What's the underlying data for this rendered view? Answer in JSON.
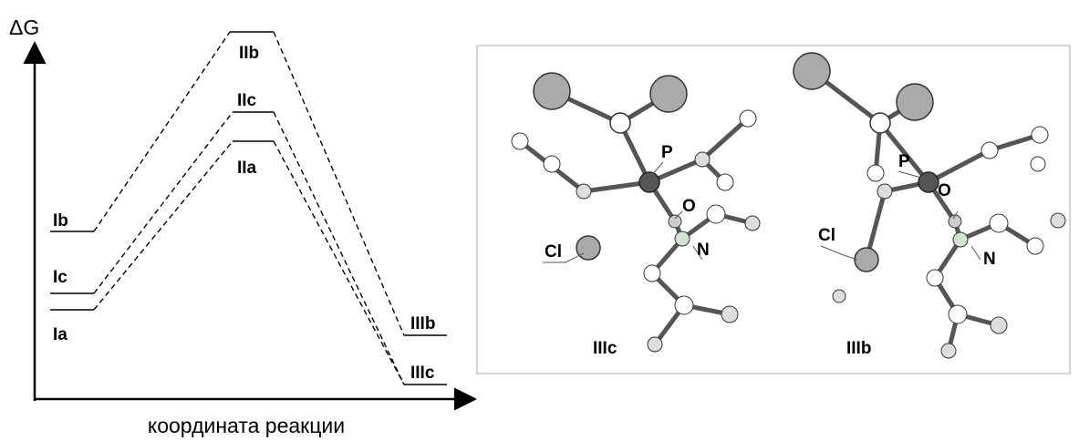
{
  "profile": {
    "y_axis_label": "ΔG",
    "x_axis_label": "координата реакции",
    "levels": {
      "Ib": "Ib",
      "Ic": "Ic",
      "Ia": "Ia",
      "IIb": "IIb",
      "IIc": "IIc",
      "IIa": "IIa",
      "IIIb": "IIIb",
      "IIIc": "IIIc"
    }
  },
  "structures": [
    {
      "name": "IIIc",
      "atoms": {
        "P": "P",
        "O": "O",
        "N": "N",
        "Cl": "Cl"
      }
    },
    {
      "name": "IIIb",
      "atoms": {
        "P": "P",
        "O": "O",
        "N": "N",
        "Cl": "Cl"
      }
    }
  ]
}
